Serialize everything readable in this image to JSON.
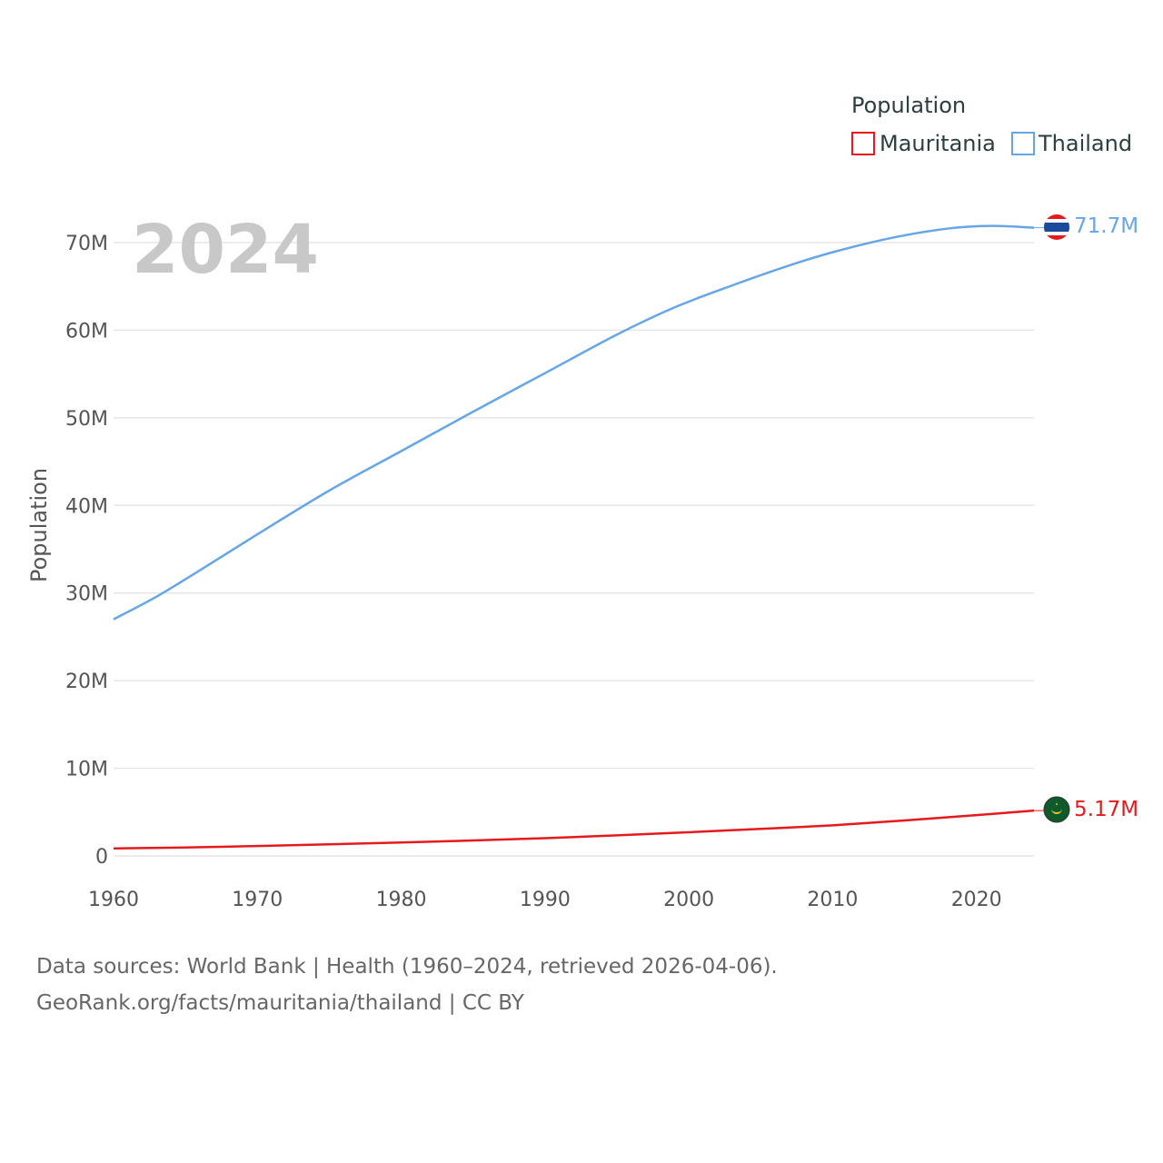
{
  "chart_data": {
    "type": "line",
    "title": "",
    "year_watermark": "2024",
    "xlabel": "",
    "ylabel": "Population",
    "xlim": [
      1960,
      2024
    ],
    "ylim": [
      0,
      72000000
    ],
    "x_ticks": [
      1960,
      1970,
      1980,
      1990,
      2000,
      2010,
      2020
    ],
    "y_ticks": [
      {
        "value": 0,
        "label": "0"
      },
      {
        "value": 10000000,
        "label": "10M"
      },
      {
        "value": 20000000,
        "label": "20M"
      },
      {
        "value": 30000000,
        "label": "30M"
      },
      {
        "value": 40000000,
        "label": "40M"
      },
      {
        "value": 50000000,
        "label": "50M"
      },
      {
        "value": 60000000,
        "label": "60M"
      },
      {
        "value": 70000000,
        "label": "70M"
      }
    ],
    "legend": {
      "title": "Population",
      "placement": "top-right",
      "entries": [
        "Mauritania",
        "Thailand"
      ]
    },
    "series": [
      {
        "name": "Mauritania",
        "color": "#e41a1c",
        "end_label": "5.17M",
        "flag": "mauritania-flag-icon",
        "x": [
          1960,
          1965,
          1970,
          1975,
          1980,
          1985,
          1990,
          1995,
          2000,
          2005,
          2010,
          2015,
          2020,
          2024
        ],
        "values": [
          850000,
          960000,
          1130000,
          1320000,
          1530000,
          1760000,
          2020000,
          2340000,
          2700000,
          3080000,
          3490000,
          4050000,
          4650000,
          5170000
        ]
      },
      {
        "name": "Thailand",
        "color": "#66a6e6",
        "end_label": "71.7M",
        "flag": "thailand-flag-icon",
        "x": [
          1960,
          1963,
          1966,
          1970,
          1975,
          1980,
          1985,
          1990,
          1995,
          1999,
          2003,
          2007,
          2010,
          2014,
          2018,
          2021,
          2024
        ],
        "values": [
          27000000,
          29600000,
          32600000,
          36700000,
          41700000,
          46200000,
          50700000,
          55100000,
          59500000,
          62600000,
          65100000,
          67400000,
          68900000,
          70500000,
          71600000,
          71900000,
          71700000
        ]
      }
    ]
  },
  "footer": {
    "line1": "Data sources: World Bank | Health (1960–2024, retrieved 2026-04-06).",
    "line2": "GeoRank.org/facts/mauritania/thailand | CC BY"
  }
}
